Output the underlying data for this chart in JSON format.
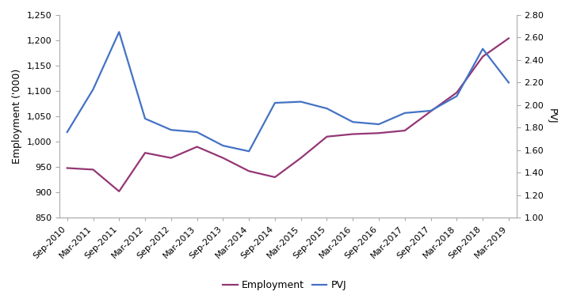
{
  "labels": [
    "Sep-2010",
    "Mar-2011",
    "Sep-2011",
    "Mar-2012",
    "Sep-2012",
    "Mar-2013",
    "Sep-2013",
    "Mar-2014",
    "Sep-2014",
    "Mar-2015",
    "Sep-2015",
    "Mar-2016",
    "Sep-2016",
    "Mar-2017",
    "Sep-2017",
    "Mar-2018",
    "Sep-2018",
    "Mar-2019"
  ],
  "employment": [
    948,
    945,
    902,
    978,
    968,
    990,
    968,
    942,
    930,
    968,
    1010,
    1015,
    1017,
    1022,
    1060,
    1097,
    1168,
    1204
  ],
  "pvj": [
    1.76,
    2.14,
    2.65,
    1.88,
    1.78,
    1.76,
    1.64,
    1.59,
    2.02,
    2.03,
    1.97,
    1.85,
    1.83,
    1.93,
    1.95,
    2.08,
    2.5,
    2.2
  ],
  "employment_color": "#943675",
  "pvj_color": "#4472C4",
  "ylim_left": [
    850,
    1250
  ],
  "ylim_right": [
    1.0,
    2.8
  ],
  "yticks_left": [
    850,
    900,
    950,
    1000,
    1050,
    1100,
    1150,
    1200,
    1250
  ],
  "yticks_right": [
    1.0,
    1.2,
    1.4,
    1.6,
    1.8,
    2.0,
    2.2,
    2.4,
    2.6,
    2.8
  ],
  "ylabel_left": "Employment ('000)",
  "ylabel_right": "PVJ",
  "legend_labels": [
    "Employment",
    "PVJ"
  ],
  "line_width": 1.6,
  "tick_fontsize": 8,
  "ylabel_fontsize": 9
}
